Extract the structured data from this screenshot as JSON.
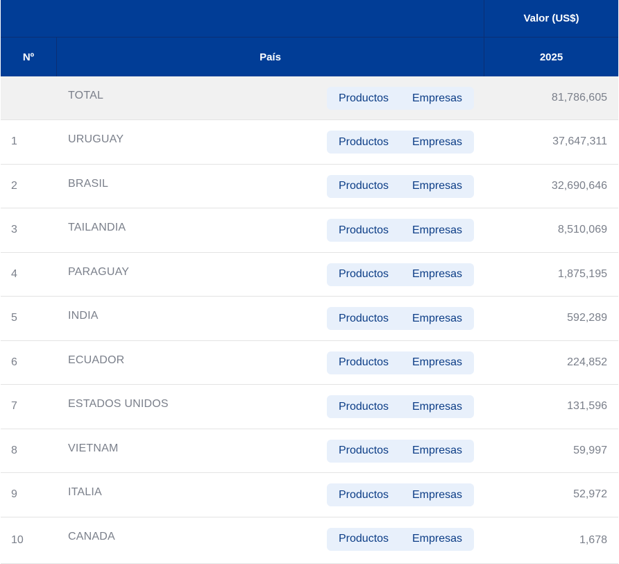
{
  "header": {
    "value_group": "Valor (US$)",
    "col_num": "Nº",
    "col_country": "País",
    "col_year": "2025"
  },
  "buttons": {
    "products": "Productos",
    "companies": "Empresas"
  },
  "total": {
    "label": "TOTAL",
    "value": "81,786,605"
  },
  "rows": [
    {
      "num": "1",
      "country": "URUGUAY",
      "value": "37,647,311"
    },
    {
      "num": "2",
      "country": "BRASIL",
      "value": "32,690,646"
    },
    {
      "num": "3",
      "country": "TAILANDIA",
      "value": "8,510,069"
    },
    {
      "num": "4",
      "country": "PARAGUAY",
      "value": "1,875,195"
    },
    {
      "num": "5",
      "country": "INDIA",
      "value": "592,289"
    },
    {
      "num": "6",
      "country": "ECUADOR",
      "value": "224,852"
    },
    {
      "num": "7",
      "country": "ESTADOS UNIDOS",
      "value": "131,596"
    },
    {
      "num": "8",
      "country": "VIETNAM",
      "value": "59,997"
    },
    {
      "num": "9",
      "country": "ITALIA",
      "value": "52,972"
    },
    {
      "num": "10",
      "country": "CANADA",
      "value": "1,678"
    }
  ]
}
